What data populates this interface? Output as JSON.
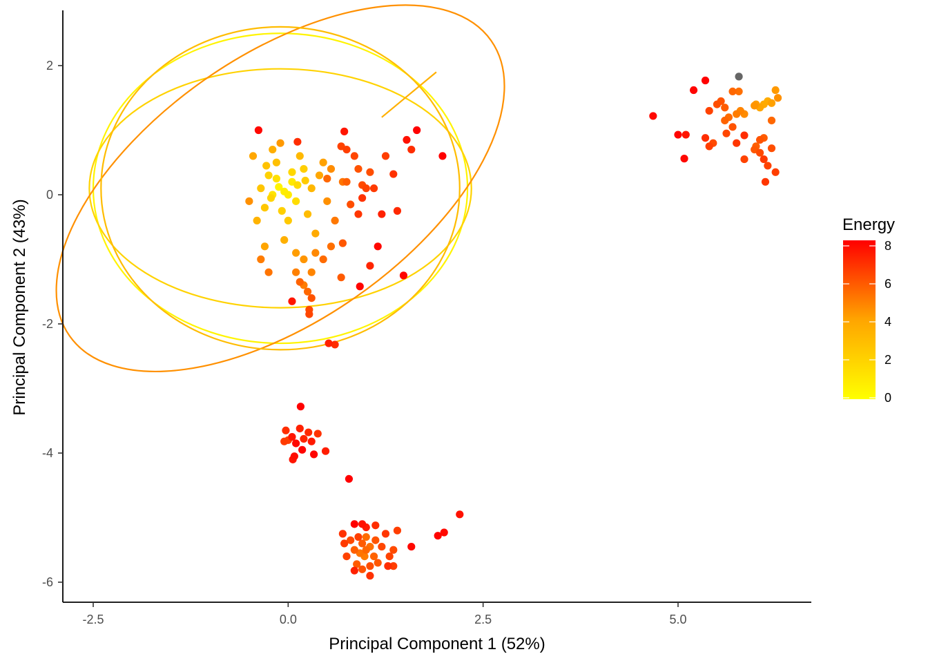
{
  "chart_data": {
    "type": "scatter",
    "title": "",
    "xlabel": "Principal Component 1 (52%)",
    "ylabel": "Principal Component 2 (43%)",
    "xlim": [
      -2.8,
      6.75
    ],
    "ylim": [
      -6.3,
      2.85
    ],
    "x_ticks": [
      -2.5,
      0,
      2.5,
      5
    ],
    "x_tick_labels": [
      "-2.5",
      "0.0",
      "2.5",
      "5.0"
    ],
    "y_ticks": [
      2,
      0,
      -2,
      -4,
      -6
    ],
    "y_tick_labels": [
      "2",
      "0",
      "-2",
      "-4",
      "-6"
    ],
    "grid": false,
    "legend": {
      "title": "Energy",
      "position": "right",
      "min": 0,
      "max": 8,
      "ticks": [
        0,
        2,
        4,
        6,
        8
      ],
      "tick_labels": [
        "0",
        "2",
        "4",
        "6",
        "8"
      ],
      "colors": [
        "#FFFF00",
        "#FFA500",
        "#FF0000"
      ],
      "na_color": "#666666"
    },
    "ellipses": [
      {
        "cx": -0.1,
        "cy": 0.1,
        "rx": 2.4,
        "ry": 2.4,
        "rotation": 0,
        "energy": 0.5
      },
      {
        "cx": -0.1,
        "cy": 0.1,
        "rx": 2.45,
        "ry": 1.85,
        "rotation": 0,
        "energy": 2.0
      },
      {
        "cx": -0.1,
        "cy": 0.1,
        "rx": 3.3,
        "ry": 2.05,
        "rotation": -35,
        "energy": 4.5
      },
      {
        "cx": -0.1,
        "cy": 0.1,
        "rx": 2.3,
        "ry": 2.5,
        "rotation": 0,
        "energy": 3.0
      }
    ],
    "segment": {
      "x1": 1.2,
      "y1": 1.2,
      "x2": 1.9,
      "y2": 1.9,
      "energy": 3.5
    },
    "points": [
      {
        "x": -0.12,
        "y": 0.12,
        "e": 0.5
      },
      {
        "x": -0.05,
        "y": 0.05,
        "e": 0.8
      },
      {
        "x": -0.2,
        "y": 0.0,
        "e": 1.2
      },
      {
        "x": 0.05,
        "y": 0.2,
        "e": 1.0
      },
      {
        "x": -0.25,
        "y": 0.3,
        "e": 2.0
      },
      {
        "x": 0.1,
        "y": -0.1,
        "e": 1.5
      },
      {
        "x": -0.3,
        "y": -0.2,
        "e": 2.5
      },
      {
        "x": 0.2,
        "y": 0.4,
        "e": 2.2
      },
      {
        "x": -0.15,
        "y": 0.5,
        "e": 2.8
      },
      {
        "x": 0.25,
        "y": -0.3,
        "e": 3.0
      },
      {
        "x": -0.35,
        "y": 0.1,
        "e": 2.6
      },
      {
        "x": 0.0,
        "y": -0.4,
        "e": 2.4
      },
      {
        "x": 0.3,
        "y": 0.1,
        "e": 3.2
      },
      {
        "x": -0.4,
        "y": -0.4,
        "e": 3.4
      },
      {
        "x": 0.15,
        "y": 0.6,
        "e": 3.1
      },
      {
        "x": -0.2,
        "y": 0.7,
        "e": 3.6
      },
      {
        "x": 0.35,
        "y": -0.6,
        "e": 3.8
      },
      {
        "x": -0.05,
        "y": -0.7,
        "e": 3.5
      },
      {
        "x": 0.4,
        "y": 0.3,
        "e": 3.9
      },
      {
        "x": -0.3,
        "y": -0.8,
        "e": 4.0
      },
      {
        "x": 0.1,
        "y": -0.9,
        "e": 4.2
      },
      {
        "x": 0.45,
        "y": 0.5,
        "e": 4.1
      },
      {
        "x": -0.1,
        "y": 0.8,
        "e": 4.3
      },
      {
        "x": 0.2,
        "y": -1.0,
        "e": 4.4
      },
      {
        "x": 0.05,
        "y": 0.35,
        "e": 1.8
      },
      {
        "x": -0.22,
        "y": -0.05,
        "e": 1.9
      },
      {
        "x": 0.12,
        "y": 0.15,
        "e": 1.6
      },
      {
        "x": -0.08,
        "y": -0.25,
        "e": 2.1
      },
      {
        "x": 0.22,
        "y": 0.22,
        "e": 2.3
      },
      {
        "x": -0.28,
        "y": 0.45,
        "e": 2.7
      },
      {
        "x": 0.5,
        "y": -0.1,
        "e": 4.5
      },
      {
        "x": 0.55,
        "y": 0.4,
        "e": 4.6
      },
      {
        "x": 0.3,
        "y": -1.2,
        "e": 4.8
      },
      {
        "x": 0.2,
        "y": -1.4,
        "e": 5.0
      },
      {
        "x": 0.1,
        "y": -1.2,
        "e": 4.9
      },
      {
        "x": 0.35,
        "y": -0.9,
        "e": 4.7
      },
      {
        "x": 0.6,
        "y": -0.4,
        "e": 5.1
      },
      {
        "x": 0.7,
        "y": 0.2,
        "e": 5.2
      },
      {
        "x": 0.55,
        "y": -0.8,
        "e": 5.3
      },
      {
        "x": 0.45,
        "y": -1.0,
        "e": 5.4
      },
      {
        "x": -0.35,
        "y": -1.0,
        "e": 5.0
      },
      {
        "x": -0.25,
        "y": -1.2,
        "e": 5.2
      },
      {
        "x": 0.25,
        "y": -1.5,
        "e": 5.5
      },
      {
        "x": 0.15,
        "y": -1.35,
        "e": 5.6
      },
      {
        "x": 0.3,
        "y": -1.6,
        "e": 6.0
      },
      {
        "x": 0.27,
        "y": -1.78,
        "e": 6.2
      },
      {
        "x": 0.27,
        "y": -1.85,
        "e": 6.3
      },
      {
        "x": 0.05,
        "y": -1.65,
        "e": 7.5
      },
      {
        "x": 0.68,
        "y": -1.28,
        "e": 5.8
      },
      {
        "x": 0.7,
        "y": -0.75,
        "e": 5.9
      },
      {
        "x": 0.8,
        "y": -0.15,
        "e": 6.1
      },
      {
        "x": 0.75,
        "y": 0.2,
        "e": 5.7
      },
      {
        "x": 0.9,
        "y": 0.4,
        "e": 6.0
      },
      {
        "x": 0.85,
        "y": 0.6,
        "e": 6.3
      },
      {
        "x": 0.75,
        "y": 0.7,
        "e": 6.5
      },
      {
        "x": 0.68,
        "y": 0.75,
        "e": 6.4
      },
      {
        "x": 0.72,
        "y": 0.98,
        "e": 7.5
      },
      {
        "x": -0.38,
        "y": 1.0,
        "e": 7.8
      },
      {
        "x": 0.12,
        "y": 0.82,
        "e": 6.9
      },
      {
        "x": 0.5,
        "y": 0.25,
        "e": 5.5
      },
      {
        "x": 0.95,
        "y": 0.15,
        "e": 6.2
      },
      {
        "x": 1.0,
        "y": 0.1,
        "e": 6.4
      },
      {
        "x": 1.1,
        "y": 0.1,
        "e": 6.6
      },
      {
        "x": 1.05,
        "y": 0.35,
        "e": 6.1
      },
      {
        "x": 0.95,
        "y": -0.05,
        "e": 6.8
      },
      {
        "x": 0.9,
        "y": -0.3,
        "e": 6.7
      },
      {
        "x": 1.25,
        "y": 0.6,
        "e": 6.5
      },
      {
        "x": 1.35,
        "y": 0.32,
        "e": 6.8
      },
      {
        "x": 1.4,
        "y": -0.25,
        "e": 7.0
      },
      {
        "x": 1.2,
        "y": -0.3,
        "e": 7.2
      },
      {
        "x": 1.15,
        "y": -0.8,
        "e": 7.8
      },
      {
        "x": 1.05,
        "y": -1.1,
        "e": 7.1
      },
      {
        "x": 0.92,
        "y": -1.42,
        "e": 7.9
      },
      {
        "x": 1.48,
        "y": -1.25,
        "e": 7.9
      },
      {
        "x": 1.52,
        "y": 0.85,
        "e": 7.6
      },
      {
        "x": 1.58,
        "y": 0.7,
        "e": 6.9
      },
      {
        "x": 1.65,
        "y": 1.0,
        "e": 8.0
      },
      {
        "x": 1.98,
        "y": 0.6,
        "e": 8.0
      },
      {
        "x": 0.52,
        "y": -2.3,
        "e": 7.2
      },
      {
        "x": 0.6,
        "y": -2.32,
        "e": 6.9
      },
      {
        "x": -0.5,
        "y": -0.1,
        "e": 4.5
      },
      {
        "x": -0.45,
        "y": 0.6,
        "e": 3.9
      },
      {
        "x": -0.15,
        "y": 0.25,
        "e": 1.4
      },
      {
        "x": 0.0,
        "y": 0.0,
        "e": 0.9
      },
      {
        "x": 0.16,
        "y": -3.28,
        "e": 8.0
      },
      {
        "x": -0.03,
        "y": -3.65,
        "e": 6.9
      },
      {
        "x": 0.05,
        "y": -3.75,
        "e": 7.5
      },
      {
        "x": 0.1,
        "y": -3.85,
        "e": 7.8
      },
      {
        "x": 0.15,
        "y": -3.62,
        "e": 7.2
      },
      {
        "x": 0.2,
        "y": -3.78,
        "e": 7.1
      },
      {
        "x": 0.0,
        "y": -3.8,
        "e": 6.5
      },
      {
        "x": -0.05,
        "y": -3.82,
        "e": 6.6
      },
      {
        "x": 0.18,
        "y": -3.95,
        "e": 7.9
      },
      {
        "x": 0.08,
        "y": -4.05,
        "e": 7.7
      },
      {
        "x": 0.06,
        "y": -4.1,
        "e": 7.5
      },
      {
        "x": 0.3,
        "y": -3.82,
        "e": 7.4
      },
      {
        "x": 0.26,
        "y": -3.68,
        "e": 7.0
      },
      {
        "x": 0.38,
        "y": -3.7,
        "e": 6.8
      },
      {
        "x": 0.33,
        "y": -4.02,
        "e": 7.9
      },
      {
        "x": 0.48,
        "y": -3.97,
        "e": 7.3
      },
      {
        "x": 0.78,
        "y": -4.4,
        "e": 8.0
      },
      {
        "x": 0.85,
        "y": -5.1,
        "e": 8.0
      },
      {
        "x": 0.95,
        "y": -5.1,
        "e": 7.6
      },
      {
        "x": 1.0,
        "y": -5.15,
        "e": 7.4
      },
      {
        "x": 0.9,
        "y": -5.3,
        "e": 6.5
      },
      {
        "x": 0.95,
        "y": -5.4,
        "e": 5.8
      },
      {
        "x": 1.0,
        "y": -5.5,
        "e": 5.5
      },
      {
        "x": 0.92,
        "y": -5.55,
        "e": 5.2
      },
      {
        "x": 0.98,
        "y": -5.6,
        "e": 5.0
      },
      {
        "x": 1.05,
        "y": -5.45,
        "e": 5.3
      },
      {
        "x": 1.1,
        "y": -5.6,
        "e": 5.6
      },
      {
        "x": 0.85,
        "y": -5.5,
        "e": 5.7
      },
      {
        "x": 0.8,
        "y": -5.35,
        "e": 6.2
      },
      {
        "x": 1.12,
        "y": -5.35,
        "e": 6.0
      },
      {
        "x": 1.2,
        "y": -5.45,
        "e": 6.3
      },
      {
        "x": 1.15,
        "y": -5.7,
        "e": 5.9
      },
      {
        "x": 1.05,
        "y": -5.75,
        "e": 6.1
      },
      {
        "x": 0.95,
        "y": -5.8,
        "e": 6.0
      },
      {
        "x": 0.88,
        "y": -5.72,
        "e": 5.8
      },
      {
        "x": 0.75,
        "y": -5.6,
        "e": 6.4
      },
      {
        "x": 0.72,
        "y": -5.4,
        "e": 6.6
      },
      {
        "x": 0.7,
        "y": -5.25,
        "e": 6.8
      },
      {
        "x": 1.25,
        "y": -5.25,
        "e": 6.7
      },
      {
        "x": 1.3,
        "y": -5.6,
        "e": 6.4
      },
      {
        "x": 1.35,
        "y": -5.5,
        "e": 6.2
      },
      {
        "x": 1.28,
        "y": -5.75,
        "e": 6.9
      },
      {
        "x": 1.35,
        "y": -5.75,
        "e": 6.5
      },
      {
        "x": 1.05,
        "y": -5.9,
        "e": 6.8
      },
      {
        "x": 0.85,
        "y": -5.82,
        "e": 7.2
      },
      {
        "x": 1.4,
        "y": -5.2,
        "e": 6.5
      },
      {
        "x": 1.58,
        "y": -5.45,
        "e": 7.8
      },
      {
        "x": 1.92,
        "y": -5.28,
        "e": 7.9
      },
      {
        "x": 2.0,
        "y": -5.23,
        "e": 7.8
      },
      {
        "x": 2.2,
        "y": -4.95,
        "e": 7.6
      },
      {
        "x": 1.12,
        "y": -5.12,
        "e": 6.9
      },
      {
        "x": 1.0,
        "y": -5.3,
        "e": 5.4
      },
      {
        "x": 5.78,
        "y": 1.83,
        "e": null
      },
      {
        "x": 5.35,
        "y": 1.77,
        "e": 8.0
      },
      {
        "x": 5.2,
        "y": 1.62,
        "e": 7.9
      },
      {
        "x": 4.68,
        "y": 1.22,
        "e": 7.8
      },
      {
        "x": 5.0,
        "y": 0.93,
        "e": 7.9
      },
      {
        "x": 5.1,
        "y": 0.93,
        "e": 7.5
      },
      {
        "x": 5.08,
        "y": 0.56,
        "e": 7.8
      },
      {
        "x": 5.35,
        "y": 0.88,
        "e": 6.9
      },
      {
        "x": 5.4,
        "y": 0.75,
        "e": 6.5
      },
      {
        "x": 5.45,
        "y": 0.8,
        "e": 6.2
      },
      {
        "x": 5.4,
        "y": 1.3,
        "e": 6.4
      },
      {
        "x": 5.55,
        "y": 1.45,
        "e": 6.0
      },
      {
        "x": 5.6,
        "y": 1.35,
        "e": 5.8
      },
      {
        "x": 5.6,
        "y": 1.15,
        "e": 5.6
      },
      {
        "x": 5.65,
        "y": 1.2,
        "e": 5.4
      },
      {
        "x": 5.7,
        "y": 1.6,
        "e": 5.5
      },
      {
        "x": 5.78,
        "y": 1.6,
        "e": 5.3
      },
      {
        "x": 5.75,
        "y": 1.25,
        "e": 5.0
      },
      {
        "x": 5.8,
        "y": 1.3,
        "e": 4.8
      },
      {
        "x": 5.85,
        "y": 1.25,
        "e": 4.6
      },
      {
        "x": 5.7,
        "y": 1.05,
        "e": 6.0
      },
      {
        "x": 5.62,
        "y": 0.95,
        "e": 6.3
      },
      {
        "x": 5.75,
        "y": 0.8,
        "e": 6.7
      },
      {
        "x": 5.85,
        "y": 0.92,
        "e": 6.9
      },
      {
        "x": 5.85,
        "y": 0.55,
        "e": 6.4
      },
      {
        "x": 6.0,
        "y": 1.4,
        "e": 4.2
      },
      {
        "x": 6.05,
        "y": 1.35,
        "e": 4.0
      },
      {
        "x": 6.1,
        "y": 1.4,
        "e": 3.8
      },
      {
        "x": 6.15,
        "y": 1.45,
        "e": 3.7
      },
      {
        "x": 6.2,
        "y": 1.42,
        "e": 4.1
      },
      {
        "x": 6.25,
        "y": 1.62,
        "e": 4.3
      },
      {
        "x": 6.28,
        "y": 1.5,
        "e": 4.5
      },
      {
        "x": 6.2,
        "y": 1.15,
        "e": 5.5
      },
      {
        "x": 6.1,
        "y": 0.88,
        "e": 5.8
      },
      {
        "x": 6.05,
        "y": 0.85,
        "e": 6.0
      },
      {
        "x": 6.0,
        "y": 0.75,
        "e": 5.7
      },
      {
        "x": 5.98,
        "y": 0.7,
        "e": 5.9
      },
      {
        "x": 6.05,
        "y": 0.65,
        "e": 6.2
      },
      {
        "x": 6.1,
        "y": 0.55,
        "e": 6.6
      },
      {
        "x": 6.15,
        "y": 0.45,
        "e": 6.4
      },
      {
        "x": 6.2,
        "y": 0.72,
        "e": 6.1
      },
      {
        "x": 6.25,
        "y": 0.35,
        "e": 6.5
      },
      {
        "x": 6.12,
        "y": 0.2,
        "e": 6.7
      },
      {
        "x": 5.98,
        "y": 1.38,
        "e": 4.4
      },
      {
        "x": 5.5,
        "y": 1.4,
        "e": 6.1
      }
    ]
  }
}
